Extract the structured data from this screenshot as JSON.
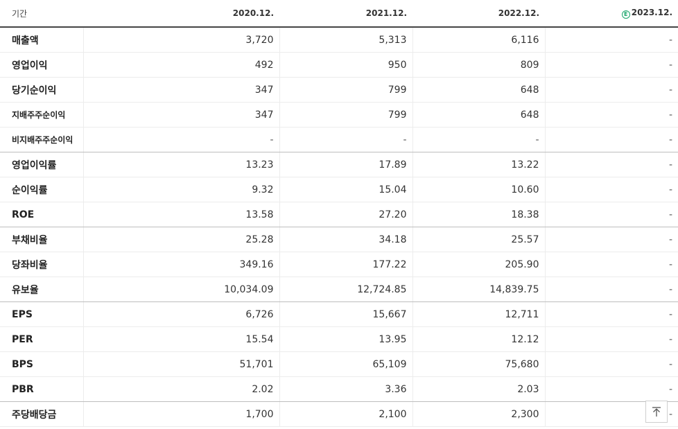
{
  "header": {
    "period_label": "기간",
    "periods": [
      "2020.12.",
      "2021.12.",
      "2022.12.",
      "2023.12."
    ],
    "estimate_badge": "E"
  },
  "rows": [
    {
      "label": "매출액",
      "values": [
        "3,720",
        "5,313",
        "6,116",
        "-"
      ]
    },
    {
      "label": "영업이익",
      "values": [
        "492",
        "950",
        "809",
        "-"
      ]
    },
    {
      "label": "당기순이익",
      "values": [
        "347",
        "799",
        "648",
        "-"
      ]
    },
    {
      "label": "지배주주순이익",
      "values": [
        "347",
        "799",
        "648",
        "-"
      ]
    },
    {
      "label": "비지배주주순이익",
      "values": [
        "-",
        "-",
        "-",
        "-"
      ]
    },
    {
      "label": "영업이익률",
      "values": [
        "13.23",
        "17.89",
        "13.22",
        "-"
      ]
    },
    {
      "label": "순이익률",
      "values": [
        "9.32",
        "15.04",
        "10.60",
        "-"
      ]
    },
    {
      "label": "ROE",
      "values": [
        "13.58",
        "27.20",
        "18.38",
        "-"
      ]
    },
    {
      "label": "부채비율",
      "values": [
        "25.28",
        "34.18",
        "25.57",
        "-"
      ]
    },
    {
      "label": "당좌비율",
      "values": [
        "349.16",
        "177.22",
        "205.90",
        "-"
      ]
    },
    {
      "label": "유보율",
      "values": [
        "10,034.09",
        "12,724.85",
        "14,839.75",
        "-"
      ]
    },
    {
      "label": "EPS",
      "values": [
        "6,726",
        "15,667",
        "12,711",
        "-"
      ]
    },
    {
      "label": "PER",
      "values": [
        "15.54",
        "13.95",
        "12.12",
        "-"
      ]
    },
    {
      "label": "BPS",
      "values": [
        "51,701",
        "65,109",
        "75,680",
        "-"
      ]
    },
    {
      "label": "PBR",
      "values": [
        "2.02",
        "3.36",
        "2.03",
        "-"
      ]
    },
    {
      "label": "주당배당금",
      "values": [
        "1,700",
        "2,100",
        "2,300",
        "-"
      ]
    }
  ],
  "scroll_top_icon": "arrow-up-to-top-icon"
}
